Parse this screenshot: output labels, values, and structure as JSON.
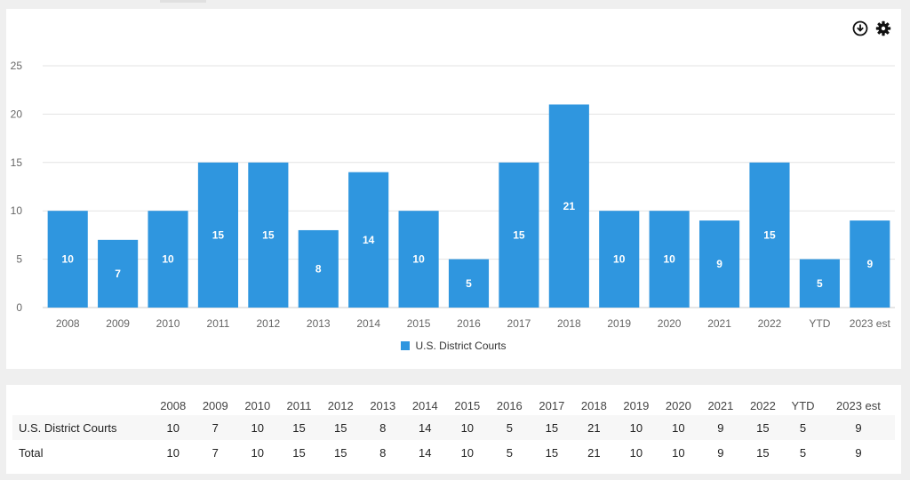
{
  "chart_data": {
    "type": "bar",
    "categories": [
      "2008",
      "2009",
      "2010",
      "2011",
      "2012",
      "2013",
      "2014",
      "2015",
      "2016",
      "2017",
      "2018",
      "2019",
      "2020",
      "2021",
      "2022",
      "YTD",
      "2023 est"
    ],
    "series": [
      {
        "name": "U.S. District Courts",
        "values": [
          10,
          7,
          10,
          15,
          15,
          8,
          14,
          10,
          5,
          15,
          21,
          10,
          10,
          9,
          15,
          5,
          9
        ],
        "color": "#2f96df"
      }
    ],
    "yticks": [
      0,
      5,
      10,
      15,
      20,
      25
    ],
    "ylim": [
      0,
      25
    ],
    "grid": true,
    "legend_position": "bottom-center",
    "data_labels": true
  },
  "toolbar": {
    "download_icon": "download-circle-icon",
    "settings_icon": "gear-icon"
  },
  "table": {
    "headers": [
      "",
      "2008",
      "2009",
      "2010",
      "2011",
      "2012",
      "2013",
      "2014",
      "2015",
      "2016",
      "2017",
      "2018",
      "2019",
      "2020",
      "2021",
      "2022",
      "YTD",
      "2023 est"
    ],
    "rows": [
      {
        "label": "U.S. District Courts",
        "values": [
          "10",
          "7",
          "10",
          "15",
          "15",
          "8",
          "14",
          "10",
          "5",
          "15",
          "21",
          "10",
          "10",
          "9",
          "15",
          "5",
          "9"
        ]
      },
      {
        "label": "Total",
        "values": [
          "10",
          "7",
          "10",
          "15",
          "15",
          "8",
          "14",
          "10",
          "5",
          "15",
          "21",
          "10",
          "10",
          "9",
          "15",
          "5",
          "9"
        ]
      }
    ]
  }
}
